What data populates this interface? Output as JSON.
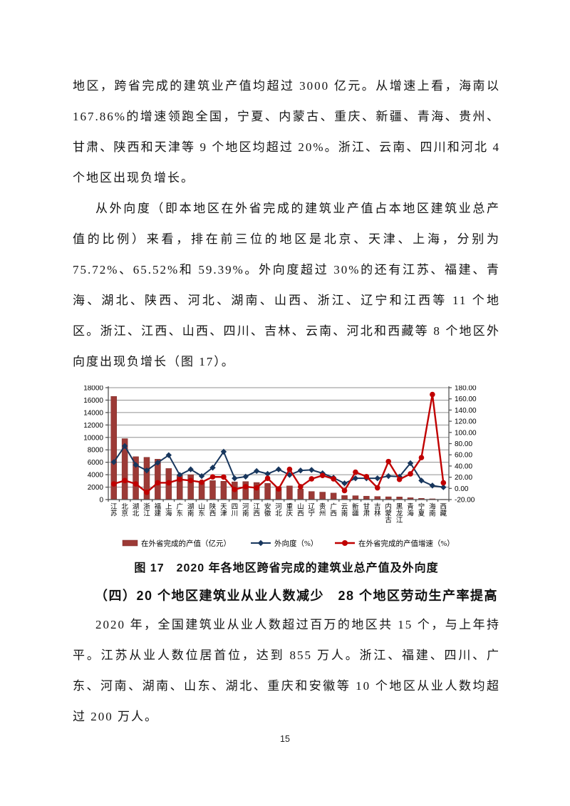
{
  "page": {
    "number": "15"
  },
  "content": {
    "paragraph1": "地区，跨省完成的建筑业产值均超过 3000 亿元。从增速上看，海南以 167.86%的增速领跑全国，宁夏、内蒙古、重庆、新疆、青海、贵州、甘肃、陕西和天津等 9 个地区均超过 20%。浙江、云南、四川和河北 4 个地区出现负增长。",
    "paragraph2": "从外向度（即本地区在外省完成的建筑业产值占本地区建筑业总产值的比例）来看，排在前三位的地区是北京、天津、上海，分别为 75.72%、65.52%和 59.39%。外向度超过 30%的还有江苏、福建、青海、湖北、陕西、河北、湖南、山西、浙江、辽宁和江西等 11 个地区。浙江、江西、山西、四川、吉林、云南、河北和西藏等 8 个地区外向度出现负增长（图 17）。",
    "figure_caption": "图 17　2020 年各地区跨省完成的建筑业总产值及外向度",
    "section_heading": "（四）20 个地区建筑业从业人数减少　28 个地区劳动生产率提高",
    "paragraph3": "2020 年，全国建筑业从业人数超过百万的地区共 15 个，与上年持平。江苏从业人数位居首位，达到 855 万人。浙江、福建、四川、广东、河南、湖南、山东、湖北、重庆和安徽等 10 个地区从业人数均超过 200 万人。"
  },
  "chart_data": {
    "type": "bar+line combo",
    "title": "图 17　2020 年各地区跨省完成的建筑业总产值及外向度",
    "grid": true,
    "legend_position": "bottom",
    "categories": [
      "江苏",
      "北京",
      "湖北",
      "浙江",
      "福建",
      "上海",
      "广东",
      "湖南",
      "山东",
      "陕西",
      "天津",
      "四川",
      "河南",
      "江西",
      "安徽",
      "河北",
      "重庆",
      "山西",
      "辽宁",
      "贵州",
      "广西",
      "云南",
      "新疆",
      "甘肃",
      "吉林",
      "内蒙古",
      "黑龙江",
      "青海",
      "宁夏",
      "海南",
      "西藏"
    ],
    "left_axis": {
      "min": 0,
      "max": 18000,
      "step": 2000,
      "decimals": 0
    },
    "right_axis": {
      "min": -20,
      "max": 180,
      "step": 20,
      "decimals": 2
    },
    "series": [
      {
        "name": "在外省完成的产值（亿元）",
        "type": "bar",
        "axis": "left",
        "color": "#9C3A36",
        "values": [
          16600,
          9800,
          6900,
          6800,
          6500,
          5000,
          3900,
          4000,
          2850,
          3050,
          2950,
          2850,
          2900,
          2750,
          2600,
          2000,
          2200,
          1700,
          1300,
          1200,
          1050,
          650,
          620,
          550,
          500,
          450,
          430,
          300,
          200,
          120,
          40
        ]
      },
      {
        "name": "外向度（%）",
        "type": "line",
        "marker": "diamond",
        "axis": "right",
        "color": "#17365D",
        "values": [
          47,
          75.72,
          42,
          32,
          46,
          59.39,
          24,
          34,
          22,
          37,
          65.52,
          18,
          21,
          31,
          26,
          34,
          24,
          32,
          33,
          27,
          19,
          9,
          18,
          18,
          18,
          22,
          21,
          45,
          14,
          5,
          2
        ]
      },
      {
        "name": "在外省完成的产值增速（%）",
        "type": "line",
        "marker": "circle",
        "axis": "right",
        "color": "#C00000",
        "values": [
          8,
          14,
          8,
          -7,
          10,
          10,
          16,
          14,
          11,
          20.6,
          20.3,
          -2,
          3,
          1,
          18,
          -1,
          34,
          3,
          17,
          23,
          17,
          -4,
          29,
          21,
          1,
          48,
          16,
          26,
          55,
          167.86,
          10
        ]
      }
    ]
  }
}
